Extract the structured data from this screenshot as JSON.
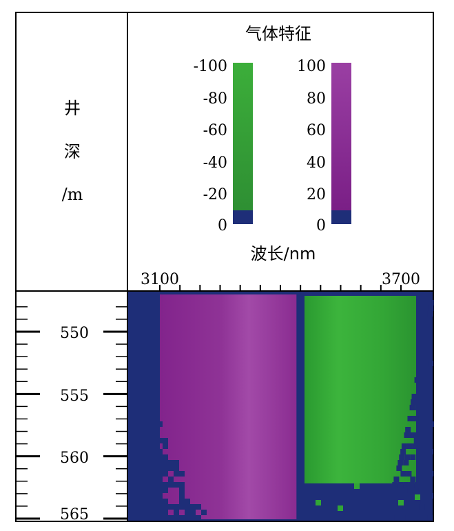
{
  "chart_data": {
    "type": "heatmap",
    "title": "气体特征",
    "ylabel_chars": [
      "井",
      "深",
      "/m"
    ],
    "xlabel": "波长/nm",
    "x_tick_labels": [
      "3100",
      "3700"
    ],
    "x_range": [
      3100,
      3700
    ],
    "depth_range": [
      547.5,
      565.5
    ],
    "depth_tick_labels": [
      "550",
      "555",
      "560",
      "565"
    ],
    "depth_ticks": [
      550,
      555,
      560,
      565
    ],
    "colorbars": [
      {
        "name": "green",
        "tick_labels": [
          "-100",
          "-80",
          "-60",
          "-40",
          "-20",
          "0"
        ],
        "range": [
          0,
          -100
        ],
        "color_high": "#3cae3a",
        "color_low": "#2e8f33",
        "color_zero": "#1e2e78"
      },
      {
        "name": "purple",
        "tick_labels": [
          "100",
          "80",
          "60",
          "40",
          "20",
          "0"
        ],
        "range": [
          0,
          100
        ],
        "color_high": "#9a3fa3",
        "color_low": "#7a1f86",
        "color_zero": "#1e2e78"
      }
    ],
    "background_color": "#1e2e78",
    "bands": [
      {
        "from": 3100,
        "to": 3440,
        "colorbar": "purple"
      },
      {
        "from": 3440,
        "to": 3460,
        "colorbar": "none"
      },
      {
        "from": 3460,
        "to": 3700,
        "colorbar": "green"
      }
    ]
  },
  "colors": {
    "navy": "#1e2e78",
    "purple": "#8a2a92",
    "purple_light": "#a04aa6",
    "green": "#30a034",
    "green_light": "#3cb23c"
  }
}
